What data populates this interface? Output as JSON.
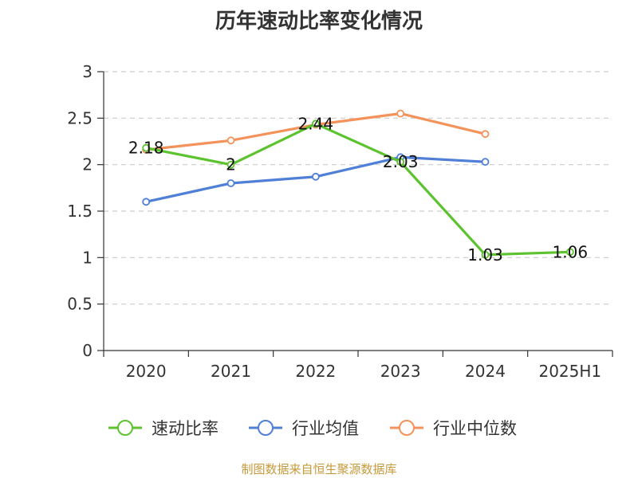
{
  "chart_data": {
    "type": "line",
    "title": "历年速动比率变化情况",
    "categories": [
      "2020",
      "2021",
      "2022",
      "2023",
      "2024",
      "2025H1"
    ],
    "ylim": [
      0,
      3
    ],
    "yticks": [
      "0",
      "0.5",
      "1",
      "1.5",
      "2",
      "2.5",
      "3"
    ],
    "grid": true,
    "legend_position": "bottom",
    "series": [
      {
        "name": "速动比率",
        "color": "#5cc22e",
        "values": [
          2.18,
          2,
          2.44,
          2.03,
          1.03,
          1.06
        ],
        "data_labels": [
          "2.18",
          "2",
          "2.44",
          "2.03",
          "1.03",
          "1.06"
        ]
      },
      {
        "name": "行业均值",
        "color": "#4f7fd6",
        "values": [
          1.6,
          1.8,
          1.87,
          2.08,
          2.03,
          null
        ]
      },
      {
        "name": "行业中位数",
        "color": "#f4925b",
        "values": [
          2.16,
          2.26,
          2.43,
          2.55,
          2.33,
          null
        ]
      }
    ]
  },
  "source_note": "制图数据来自恒生聚源数据库"
}
